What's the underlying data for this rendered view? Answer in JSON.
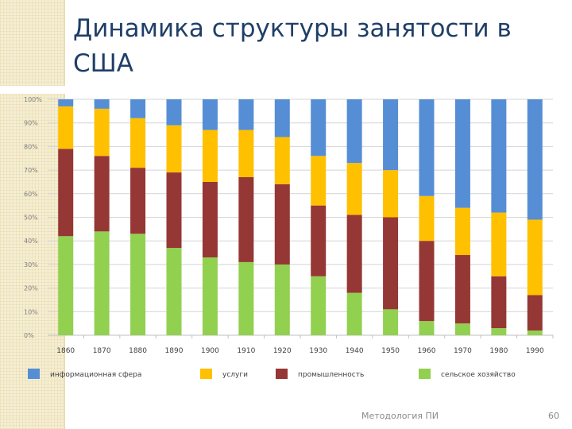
{
  "slide": {
    "title": "Динамика структуры занятости в США",
    "footer_text": "Методология ПИ",
    "page_number": "60"
  },
  "chart_data": {
    "type": "stacked-bar-100",
    "title": "",
    "categories": [
      "1860",
      "1870",
      "1880",
      "1890",
      "1900",
      "1910",
      "1920",
      "1930",
      "1940",
      "1950",
      "1960",
      "1970",
      "1980",
      "1990"
    ],
    "y_ticks": [
      "0%",
      "10%",
      "20%",
      "30%",
      "40%",
      "50%",
      "60%",
      "70%",
      "80%",
      "90%",
      "100%"
    ],
    "ylim": [
      0,
      100
    ],
    "grid": true,
    "legend_position": "bottom",
    "series": [
      {
        "name": "сельское хозяйство",
        "color": "#92d050",
        "values": [
          42,
          44,
          43,
          37,
          33,
          31,
          30,
          25,
          18,
          11,
          6,
          5,
          3,
          2
        ]
      },
      {
        "name": "промышленность",
        "color": "#953735",
        "values": [
          37,
          32,
          28,
          32,
          32,
          36,
          34,
          30,
          33,
          39,
          34,
          29,
          22,
          15
        ]
      },
      {
        "name": "услуги",
        "color": "#ffc000",
        "values": [
          18,
          20,
          21,
          20,
          22,
          20,
          20,
          21,
          22,
          20,
          19,
          20,
          27,
          32
        ]
      },
      {
        "name": "информационная сфера",
        "color": "#558ed5",
        "values": [
          3,
          4,
          8,
          11,
          13,
          13,
          16,
          24,
          27,
          30,
          41,
          46,
          48,
          51
        ]
      }
    ],
    "legend_order": [
      "информационная сфера",
      "услуги",
      "промышленность",
      "сельское хозяйство"
    ]
  }
}
